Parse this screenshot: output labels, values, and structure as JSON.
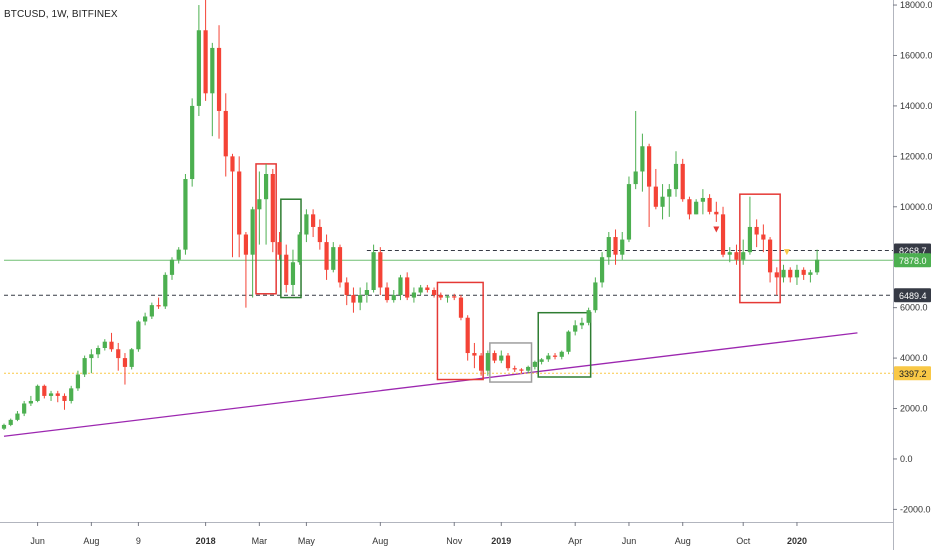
{
  "header": {
    "symbol": "BTCUSD, 1W, BITFINEX"
  },
  "chart_data": {
    "type": "candlestick",
    "title": "BTCUSD, 1W, BITFINEX",
    "ylim": [
      -2500,
      18200
    ],
    "y_ticks": [
      {
        "value": 18000,
        "label": "18000.0"
      },
      {
        "value": 16000,
        "label": "16000.0"
      },
      {
        "value": 14000,
        "label": "14000.0"
      },
      {
        "value": 12000,
        "label": "12000.0"
      },
      {
        "value": 10000,
        "label": "10000.0"
      },
      {
        "value": 6000,
        "label": "6000.0"
      },
      {
        "value": 4000,
        "label": "4000.0"
      },
      {
        "value": 2000,
        "label": "2000.0"
      },
      {
        "value": 0,
        "label": "0.0"
      },
      {
        "value": -2000,
        "label": "-2000.0"
      }
    ],
    "x_ticks": [
      {
        "index": 5,
        "label": "Jun"
      },
      {
        "index": 13,
        "label": "Aug"
      },
      {
        "index": 20,
        "label": "9"
      },
      {
        "index": 30,
        "label": "2018"
      },
      {
        "index": 38,
        "label": "Mar"
      },
      {
        "index": 45,
        "label": "May"
      },
      {
        "index": 56,
        "label": "Aug"
      },
      {
        "index": 67,
        "label": "Nov"
      },
      {
        "index": 74,
        "label": "2019"
      },
      {
        "index": 85,
        "label": "Apr"
      },
      {
        "index": 93,
        "label": "Jun"
      },
      {
        "index": 101,
        "label": "Aug"
      },
      {
        "index": 110,
        "label": "Oct"
      },
      {
        "index": 118,
        "label": "2020"
      }
    ],
    "price_levels": [
      {
        "value": 8268.7,
        "label": "8268.7",
        "style": "dashed",
        "color": "#363a45",
        "start_index": 54
      },
      {
        "value": 7878.0,
        "label": "7878.0",
        "style": "solid",
        "color": "#4caf50",
        "start_index": 0
      },
      {
        "value": 6489.4,
        "label": "6489.4",
        "style": "dashed",
        "color": "#363a45",
        "start_index": 0
      },
      {
        "value": 3397.2,
        "label": "3397.2",
        "style": "dotted",
        "color": "#f9c846",
        "start_index": 0
      }
    ],
    "trendline": {
      "color": "#9c27b0",
      "from": {
        "index": 0,
        "value": 900
      },
      "to": {
        "index": 127,
        "value": 5000
      }
    },
    "boxes": [
      {
        "color": "#e53935",
        "i0": 37.5,
        "i1": 40.5,
        "top": 11700,
        "bottom": 6550
      },
      {
        "color": "#2e7d32",
        "i0": 41.2,
        "i1": 44.2,
        "top": 10300,
        "bottom": 6400
      },
      {
        "color": "#e53935",
        "i0": 64.5,
        "i1": 71.3,
        "top": 7000,
        "bottom": 3150
      },
      {
        "color": "#9e9e9e",
        "i0": 72.3,
        "i1": 78.5,
        "top": 4600,
        "bottom": 3050
      },
      {
        "color": "#2e7d32",
        "i0": 79.5,
        "i1": 87.3,
        "top": 5800,
        "bottom": 3250
      },
      {
        "color": "#e53935",
        "i0": 109.5,
        "i1": 115.5,
        "top": 10500,
        "bottom": 6200
      }
    ],
    "markers": [
      {
        "index": 106,
        "value": 9100,
        "color": "#e53935"
      },
      {
        "index": 116.5,
        "value": 8200,
        "color": "#f9c846"
      }
    ],
    "up_color": "#4caf50",
    "down_color": "#f44336",
    "ohlc": [
      [
        1200,
        1400,
        1150,
        1350
      ],
      [
        1350,
        1600,
        1300,
        1550
      ],
      [
        1550,
        1900,
        1500,
        1800
      ],
      [
        1800,
        2300,
        1700,
        2200
      ],
      [
        2200,
        2500,
        2100,
        2300
      ],
      [
        2300,
        2950,
        2250,
        2900
      ],
      [
        2900,
        2950,
        2400,
        2500
      ],
      [
        2500,
        2700,
        2300,
        2600
      ],
      [
        2600,
        2700,
        2250,
        2500
      ],
      [
        2500,
        2600,
        1950,
        2300
      ],
      [
        2300,
        2900,
        2200,
        2800
      ],
      [
        2800,
        3500,
        2700,
        3350
      ],
      [
        3350,
        4100,
        3250,
        4000
      ],
      [
        4000,
        4350,
        3400,
        4150
      ],
      [
        4150,
        4500,
        4000,
        4400
      ],
      [
        4400,
        4750,
        4300,
        4650
      ],
      [
        4650,
        5000,
        4250,
        4350
      ],
      [
        4350,
        4600,
        3500,
        4000
      ],
      [
        4000,
        4200,
        2950,
        3650
      ],
      [
        3650,
        4400,
        3550,
        4350
      ],
      [
        4350,
        5500,
        4250,
        5450
      ],
      [
        5450,
        5800,
        5300,
        5650
      ],
      [
        5650,
        6200,
        5550,
        6100
      ],
      [
        6100,
        6400,
        5950,
        6050
      ],
      [
        6050,
        7400,
        5950,
        7300
      ],
      [
        7300,
        8000,
        7100,
        7900
      ],
      [
        7900,
        8400,
        7750,
        8300
      ],
      [
        8300,
        11300,
        8100,
        11100
      ],
      [
        11100,
        14300,
        10800,
        14000
      ],
      [
        14000,
        18000,
        13600,
        17000
      ],
      [
        17000,
        19600,
        14200,
        14500
      ],
      [
        14500,
        16500,
        12800,
        16300
      ],
      [
        16300,
        17200,
        12700,
        13800
      ],
      [
        13800,
        14500,
        11200,
        12000
      ],
      [
        12000,
        12100,
        8000,
        11400
      ],
      [
        11400,
        12000,
        8000,
        8900
      ],
      [
        8900,
        9000,
        6000,
        8100
      ],
      [
        8100,
        10000,
        6400,
        9900
      ],
      [
        9900,
        11400,
        8500,
        10300
      ],
      [
        10300,
        11700,
        8500,
        11300
      ],
      [
        11300,
        11500,
        8200,
        8600
      ],
      [
        8600,
        9000,
        7900,
        8100
      ],
      [
        8100,
        8500,
        6600,
        6900
      ],
      [
        6900,
        8300,
        6500,
        7800
      ],
      [
        7800,
        9000,
        7700,
        8900
      ],
      [
        8900,
        9900,
        8600,
        9700
      ],
      [
        9700,
        9900,
        8800,
        9200
      ],
      [
        9200,
        9500,
        8300,
        8600
      ],
      [
        8600,
        8900,
        7100,
        7500
      ],
      [
        7500,
        8600,
        7400,
        8400
      ],
      [
        8400,
        8500,
        6800,
        7000
      ],
      [
        7000,
        7200,
        6100,
        6500
      ],
      [
        6500,
        6800,
        5800,
        6200
      ],
      [
        6200,
        6800,
        5900,
        6500
      ],
      [
        6500,
        7000,
        6200,
        6700
      ],
      [
        6700,
        8500,
        6600,
        8200
      ],
      [
        8200,
        8400,
        6500,
        6800
      ],
      [
        6800,
        7000,
        6200,
        6300
      ],
      [
        6300,
        6700,
        6200,
        6500
      ],
      [
        6500,
        7300,
        6300,
        7200
      ],
      [
        7200,
        7400,
        6300,
        6400
      ],
      [
        6400,
        6800,
        6200,
        6600
      ],
      [
        6600,
        6900,
        6500,
        6800
      ],
      [
        6800,
        6900,
        6600,
        6700
      ],
      [
        6700,
        6800,
        6400,
        6500
      ],
      [
        6500,
        6600,
        6300,
        6400
      ],
      [
        6400,
        6500,
        6200,
        6450
      ],
      [
        6450,
        6550,
        6300,
        6400
      ],
      [
        6400,
        6500,
        5500,
        5600
      ],
      [
        5600,
        5700,
        3900,
        4200
      ],
      [
        4200,
        4600,
        3600,
        4100
      ],
      [
        4100,
        4200,
        3300,
        3500
      ],
      [
        3500,
        4300,
        3300,
        4200
      ],
      [
        4200,
        4300,
        3800,
        3900
      ],
      [
        3900,
        4300,
        3800,
        4100
      ],
      [
        4100,
        4200,
        3500,
        3600
      ],
      [
        3600,
        3700,
        3450,
        3550
      ],
      [
        3550,
        3600,
        3400,
        3500
      ],
      [
        3500,
        3700,
        3400,
        3650
      ],
      [
        3650,
        3900,
        3550,
        3850
      ],
      [
        3850,
        4000,
        3750,
        3950
      ],
      [
        3950,
        4200,
        3850,
        4100
      ],
      [
        4100,
        4200,
        3950,
        4050
      ],
      [
        4050,
        4300,
        3950,
        4250
      ],
      [
        4250,
        5100,
        4150,
        5050
      ],
      [
        5050,
        5500,
        4900,
        5300
      ],
      [
        5300,
        5600,
        5150,
        5400
      ],
      [
        5400,
        6000,
        5300,
        5900
      ],
      [
        5900,
        7200,
        5800,
        7000
      ],
      [
        7000,
        8200,
        6800,
        8000
      ],
      [
        8000,
        9000,
        7700,
        8800
      ],
      [
        8800,
        9100,
        7700,
        8100
      ],
      [
        8100,
        9000,
        7900,
        8700
      ],
      [
        8700,
        11200,
        8600,
        10900
      ],
      [
        10900,
        13800,
        10700,
        11400
      ],
      [
        11400,
        12900,
        10600,
        12400
      ],
      [
        12400,
        12500,
        9200,
        10800
      ],
      [
        10800,
        11500,
        9900,
        10000
      ],
      [
        10000,
        10900,
        9500,
        10400
      ],
      [
        10400,
        10900,
        9600,
        10700
      ],
      [
        10700,
        12200,
        10400,
        11700
      ],
      [
        11700,
        11900,
        10200,
        10300
      ],
      [
        10300,
        10400,
        9500,
        9700
      ],
      [
        9700,
        10300,
        9700,
        10200
      ],
      [
        10200,
        10700,
        9700,
        10350
      ],
      [
        10350,
        10500,
        9700,
        9800
      ],
      [
        9800,
        10200,
        9400,
        9700
      ],
      [
        9700,
        10000,
        8000,
        8100
      ],
      [
        8100,
        8400,
        7800,
        8200
      ],
      [
        8200,
        8500,
        7700,
        7900
      ],
      [
        7900,
        8700,
        7700,
        8200
      ],
      [
        8200,
        10400,
        8100,
        9200
      ],
      [
        9200,
        9500,
        8400,
        8900
      ],
      [
        8900,
        9300,
        8200,
        8700
      ],
      [
        8700,
        8800,
        7000,
        7400
      ],
      [
        7400,
        7600,
        6500,
        7200
      ],
      [
        7200,
        7700,
        7000,
        7500
      ],
      [
        7500,
        7600,
        7000,
        7200
      ],
      [
        7200,
        7700,
        6900,
        7500
      ],
      [
        7500,
        7600,
        7100,
        7300
      ],
      [
        7300,
        7500,
        7000,
        7400
      ],
      [
        7400,
        8300,
        7300,
        7900
      ]
    ]
  }
}
